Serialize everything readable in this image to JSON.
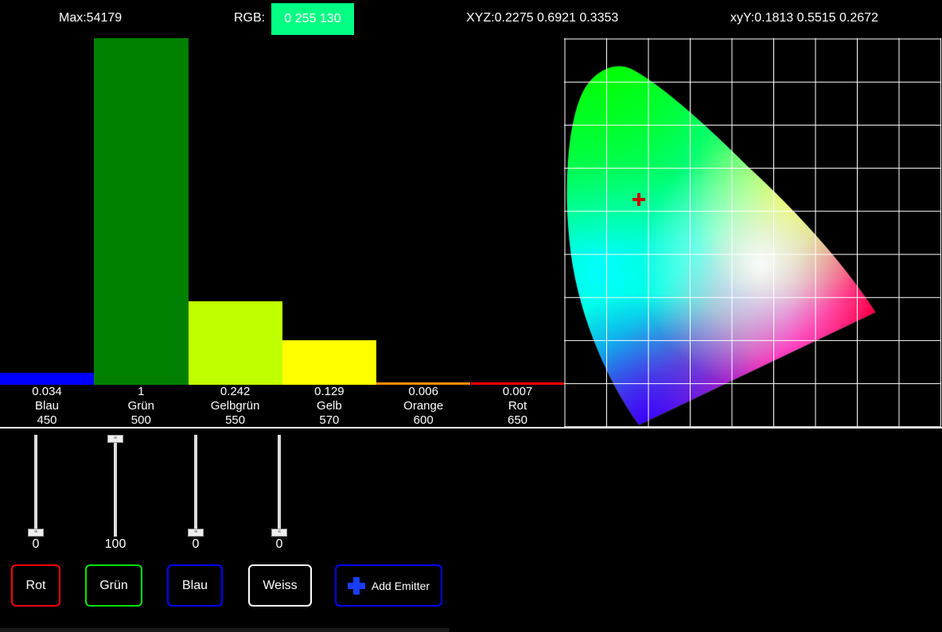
{
  "header": {
    "max_label": "Max:54179",
    "rgb_label": "RGB:",
    "rgb_value": "0 255 130",
    "rgb_color": "#00ff82",
    "xyz_label": "XYZ:0.2275 0.6921 0.3353",
    "xyy_label": "xyY:0.1813 0.5515 0.2672"
  },
  "chart_data": {
    "type": "bar",
    "categories": [
      "Blau",
      "Grün",
      "Gelbgrün",
      "Gelb",
      "Orange",
      "Rot"
    ],
    "wavelengths": [
      "450",
      "500",
      "550",
      "570",
      "600",
      "650"
    ],
    "values": [
      0.034,
      1,
      0.242,
      0.129,
      0.006,
      0.007
    ],
    "value_labels": [
      "0.034",
      "1",
      "0.242",
      "0.129",
      "0.006",
      "0.007"
    ],
    "colors": [
      "#0000ff",
      "#007f00",
      "#bfff00",
      "#ffff00",
      "#ff8c00",
      "#ff0000"
    ],
    "ylim": [
      0,
      1
    ]
  },
  "cie": {
    "grid": true,
    "marker": {
      "x": 0.1813,
      "y": 0.5515
    },
    "marker_color": "#cc0000"
  },
  "sliders": [
    {
      "name": "slider-rot",
      "value": "0",
      "level": 0
    },
    {
      "name": "slider-gruen",
      "value": "100",
      "level": 1
    },
    {
      "name": "slider-blau",
      "value": "0",
      "level": 0
    },
    {
      "name": "slider-weiss",
      "value": "0",
      "level": 0
    }
  ],
  "buttons": {
    "rot": {
      "label": "Rot",
      "color": "#ff0000"
    },
    "gruen": {
      "label": "Grün",
      "color": "#00e600"
    },
    "blau": {
      "label": "Blau",
      "color": "#0000ff"
    },
    "weiss": {
      "label": "Weiss",
      "color": "#ffffff"
    },
    "add": {
      "label": "Add Emitter",
      "color": "#0000ff",
      "icon": "plus-icon"
    }
  }
}
